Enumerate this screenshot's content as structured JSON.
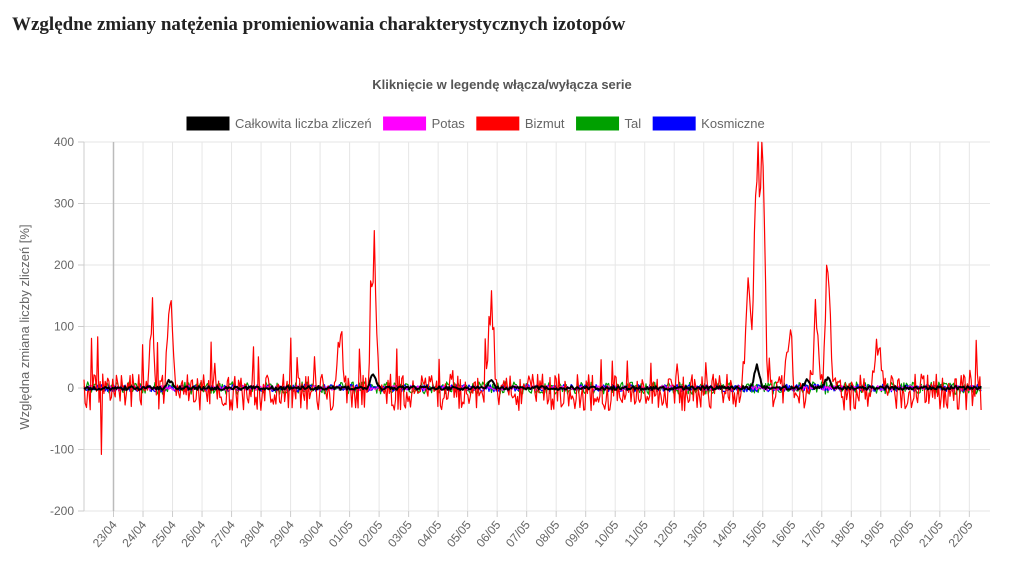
{
  "page": {
    "title": "Względne zmiany natężenia promieniowania charakterystycznych izotopów"
  },
  "chart_data": {
    "type": "line",
    "subtitle": "Kliknięcie w legendę włącza/wyłącza serie",
    "ylabel": "Względna zmiana liczby zliczeń [%]",
    "xlabel": "",
    "ylim": [
      -200,
      400
    ],
    "yticks": [
      400,
      300,
      200,
      100,
      0,
      -100,
      -200
    ],
    "xlim_days": [
      0,
      30.7
    ],
    "categories": [
      "23/04",
      "24/04",
      "25/04",
      "26/04",
      "27/04",
      "28/04",
      "29/04",
      "30/04",
      "01/05",
      "02/05",
      "03/05",
      "04/05",
      "05/05",
      "06/05",
      "07/05",
      "08/05",
      "09/05",
      "10/05",
      "11/05",
      "12/05",
      "13/05",
      "14/05",
      "15/05",
      "16/05",
      "17/05",
      "18/05",
      "19/05",
      "20/05",
      "21/05",
      "22/05"
    ],
    "grid": true,
    "legend_position": "top",
    "series": [
      {
        "name": "Całkowita liczba zliczeń",
        "color": "#000000",
        "peaks": [
          {
            "day": 2.9,
            "value": 12
          },
          {
            "day": 9.8,
            "value": 25
          },
          {
            "day": 13.8,
            "value": 12
          },
          {
            "day": 22.8,
            "value": 37
          },
          {
            "day": 24.5,
            "value": 15
          },
          {
            "day": 25.2,
            "value": 18
          }
        ],
        "noise": 3
      },
      {
        "name": "Potas",
        "color": "#ff00ff",
        "peaks": [],
        "noise": 4
      },
      {
        "name": "Bizmut",
        "color": "#ff0000",
        "peaks": [
          {
            "day": 2.3,
            "value": 113
          },
          {
            "day": 2.9,
            "value": 160
          },
          {
            "day": 8.7,
            "value": 100
          },
          {
            "day": 9.8,
            "value": 241
          },
          {
            "day": 13.8,
            "value": 148
          },
          {
            "day": 22.5,
            "value": 208
          },
          {
            "day": 22.8,
            "value": 366
          },
          {
            "day": 23.0,
            "value": 318
          },
          {
            "day": 23.9,
            "value": 107
          },
          {
            "day": 24.8,
            "value": 130
          },
          {
            "day": 25.2,
            "value": 212
          },
          {
            "day": 26.9,
            "value": 77
          }
        ],
        "min_value": -108,
        "noise": 30
      },
      {
        "name": "Tal",
        "color": "#00a000",
        "peaks": [],
        "noise": 10
      },
      {
        "name": "Kosmiczne",
        "color": "#0000ff",
        "peaks": [],
        "noise": 6
      }
    ]
  }
}
